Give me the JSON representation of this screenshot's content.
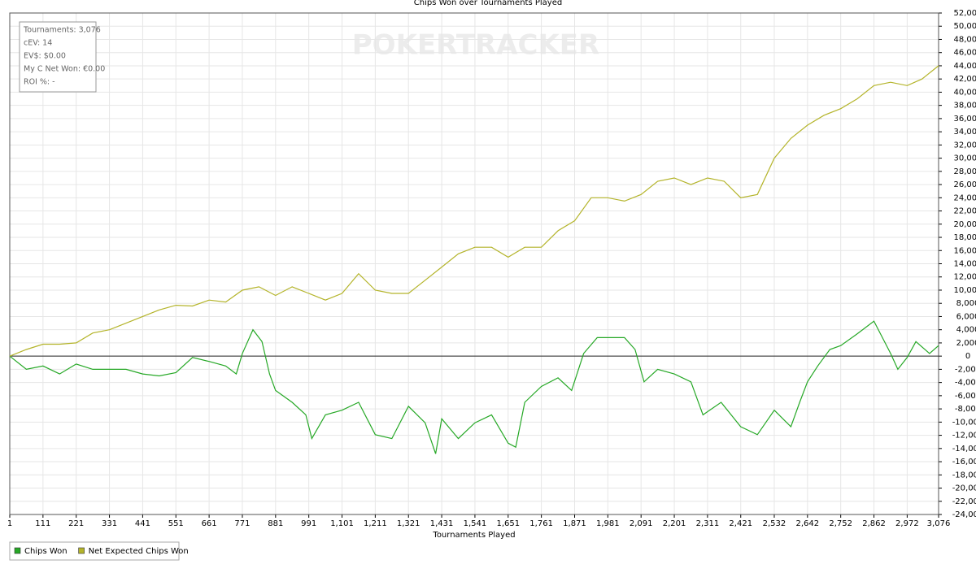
{
  "chart_data": {
    "type": "line",
    "title": "Chips Won over Tournaments Played",
    "x_label": "Tournaments Played",
    "watermark": "POKERTRACKER",
    "stats": [
      "Tournaments: 3,076",
      "cEV: 14",
      "EV$: $0.00",
      "My C Net Won: €0.00",
      "ROI %: -"
    ],
    "grid": true,
    "xlim": [
      1,
      3076
    ],
    "ylim": [
      -24000,
      52000
    ],
    "xticks": [
      1,
      111,
      221,
      331,
      441,
      551,
      661,
      771,
      881,
      991,
      {
        "value": 1101,
        "label": "1,101"
      },
      {
        "value": 1211,
        "label": "1,211"
      },
      {
        "value": 1321,
        "label": "1,321"
      },
      {
        "value": 1431,
        "label": "1,431"
      },
      {
        "value": 1541,
        "label": "1,541"
      },
      {
        "value": 1651,
        "label": "1,651"
      },
      {
        "value": 1761,
        "label": "1,761"
      },
      {
        "value": 1871,
        "label": "1,871"
      },
      {
        "value": 1981,
        "label": "1,981"
      },
      {
        "value": 2091,
        "label": "2,091"
      },
      {
        "value": 2201,
        "label": "2,201"
      },
      {
        "value": 2311,
        "label": "2,311"
      },
      {
        "value": 2421,
        "label": "2,421"
      },
      {
        "value": 2532,
        "label": "2,532"
      },
      {
        "value": 2642,
        "label": "2,642"
      },
      {
        "value": 2752,
        "label": "2,752"
      },
      {
        "value": 2862,
        "label": "2,862"
      },
      {
        "value": 2972,
        "label": "2,972"
      },
      {
        "value": 3076,
        "label": "3,076"
      }
    ],
    "yticks": [
      {
        "value": 52000,
        "label": "52,000"
      },
      {
        "value": 50000,
        "label": "50,000"
      },
      {
        "value": 48000,
        "label": "48,000"
      },
      {
        "value": 46000,
        "label": "46,000"
      },
      {
        "value": 44000,
        "label": "44,000"
      },
      {
        "value": 42000,
        "label": "42,000"
      },
      {
        "value": 40000,
        "label": "40,000"
      },
      {
        "value": 38000,
        "label": "38,000"
      },
      {
        "value": 36000,
        "label": "36,000"
      },
      {
        "value": 34000,
        "label": "34,000"
      },
      {
        "value": 32000,
        "label": "32,000"
      },
      {
        "value": 30000,
        "label": "30,000"
      },
      {
        "value": 28000,
        "label": "28,000"
      },
      {
        "value": 26000,
        "label": "26,000"
      },
      {
        "value": 24000,
        "label": "24,000"
      },
      {
        "value": 22000,
        "label": "22,000"
      },
      {
        "value": 20000,
        "label": "20,000"
      },
      {
        "value": 18000,
        "label": "18,000"
      },
      {
        "value": 16000,
        "label": "16,000"
      },
      {
        "value": 14000,
        "label": "14,000"
      },
      {
        "value": 12000,
        "label": "12,000"
      },
      {
        "value": 10000,
        "label": "10,000"
      },
      {
        "value": 8000,
        "label": "8,000"
      },
      {
        "value": 6000,
        "label": "6,000"
      },
      {
        "value": 4000,
        "label": "4,000"
      },
      {
        "value": 2000,
        "label": "2,000"
      },
      0,
      {
        "value": -2000,
        "label": "-2,000"
      },
      {
        "value": -4000,
        "label": "-4,000"
      },
      {
        "value": -6000,
        "label": "-6,000"
      },
      {
        "value": -8000,
        "label": "-8,000"
      },
      {
        "value": -10000,
        "label": "-10,000"
      },
      {
        "value": -12000,
        "label": "-12,000"
      },
      {
        "value": -14000,
        "label": "-14,000"
      },
      {
        "value": -16000,
        "label": "-16,000"
      },
      {
        "value": -18000,
        "label": "-18,000"
      },
      {
        "value": -20000,
        "label": "-20,000"
      },
      {
        "value": -22000,
        "label": "-22,000"
      },
      {
        "value": -24000,
        "label": "-24,000"
      }
    ],
    "series": [
      {
        "name": "Chips Won",
        "color": "#26a826",
        "x": [
          1,
          56,
          111,
          166,
          221,
          276,
          331,
          386,
          441,
          496,
          551,
          606,
          661,
          716,
          751,
          771,
          806,
          836,
          861,
          881,
          936,
          981,
          1001,
          1046,
          1101,
          1156,
          1211,
          1266,
          1321,
          1376,
          1411,
          1431,
          1486,
          1541,
          1596,
          1651,
          1676,
          1706,
          1761,
          1816,
          1861,
          1901,
          1946,
          1981,
          2036,
          2071,
          2101,
          2146,
          2201,
          2256,
          2296,
          2356,
          2421,
          2476,
          2532,
          2587,
          2616,
          2642,
          2676,
          2716,
          2752,
          2807,
          2862,
          2917,
          2941,
          2972,
          3001,
          3046,
          3076
        ],
        "values": [
          0,
          -2000,
          -1500,
          -2700,
          -1200,
          -2000,
          -2000,
          -2000,
          -2700,
          -3000,
          -2500,
          -200,
          -800,
          -1500,
          -2700,
          400,
          4000,
          2200,
          -2700,
          -5200,
          -7000,
          -8900,
          -12500,
          -8900,
          -8200,
          -7000,
          -11900,
          -12500,
          -7600,
          -10100,
          -14800,
          -9500,
          -12500,
          -10100,
          -8900,
          -13200,
          -13800,
          -7000,
          -4600,
          -3300,
          -5200,
          400,
          2800,
          2800,
          2800,
          1000,
          -3900,
          -2000,
          -2700,
          -3900,
          -8900,
          -7000,
          -10700,
          -11900,
          -8200,
          -10700,
          -7000,
          -3900,
          -1500,
          1000,
          1600,
          3400,
          5300,
          400,
          -2000,
          -200,
          2200,
          400,
          1600
        ]
      },
      {
        "name": "Net Expected Chips Won",
        "color": "#b4b42a",
        "x": [
          1,
          56,
          111,
          166,
          221,
          276,
          331,
          386,
          441,
          496,
          551,
          606,
          661,
          716,
          771,
          826,
          881,
          936,
          991,
          1046,
          1101,
          1156,
          1211,
          1266,
          1321,
          1376,
          1431,
          1486,
          1541,
          1596,
          1651,
          1706,
          1761,
          1816,
          1871,
          1926,
          1981,
          2036,
          2091,
          2146,
          2201,
          2256,
          2311,
          2366,
          2421,
          2476,
          2532,
          2587,
          2642,
          2697,
          2752,
          2807,
          2862,
          2917,
          2972,
          3021,
          3076
        ],
        "values": [
          0,
          1000,
          1800,
          1800,
          2000,
          3500,
          4000,
          5000,
          6000,
          7000,
          7700,
          7600,
          8500,
          8200,
          10000,
          10500,
          9200,
          10500,
          9500,
          8500,
          9500,
          12500,
          10000,
          9500,
          9500,
          11500,
          13500,
          15500,
          16500,
          16500,
          15000,
          16500,
          16500,
          19000,
          20500,
          24000,
          24000,
          23500,
          24500,
          26500,
          27000,
          26000,
          27000,
          26500,
          24000,
          24500,
          30000,
          33000,
          35000,
          36500,
          37500,
          39000,
          41000,
          41500,
          41000,
          42000,
          44000
        ]
      }
    ]
  }
}
